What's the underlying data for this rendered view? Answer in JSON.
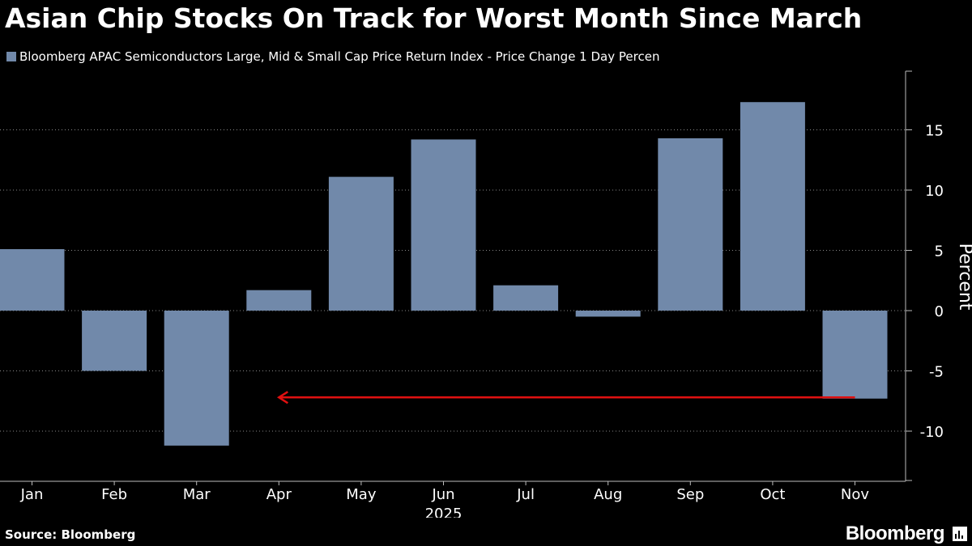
{
  "title": "Asian Chip Stocks On Track for Worst Month Since March",
  "legend_label": "Bloomberg APAC Semiconductors Large, Mid & Small Cap Price Return Index - Price Change 1 Day Percen",
  "source": "Source: Bloomberg",
  "brand": "Bloomberg",
  "colors": {
    "background": "#000000",
    "bar": "#7189aa",
    "text": "#ffffff",
    "gridline": "#888888",
    "axis": "#bbbbbb",
    "arrow": "#e01010"
  },
  "chart_data": {
    "type": "bar",
    "categories": [
      "Jan",
      "Feb",
      "Mar",
      "Apr",
      "May",
      "Jun",
      "Jul",
      "Aug",
      "Sep",
      "Oct",
      "Nov"
    ],
    "series": [
      {
        "name": "Bloomberg APAC Semiconductors Large, Mid & Small Cap Price Return Index - Price Change 1 Day Percen",
        "values": [
          5.1,
          -5.0,
          -11.2,
          1.7,
          11.1,
          14.2,
          2.1,
          -0.5,
          14.3,
          17.3,
          -7.3
        ]
      }
    ],
    "ylabel": "Percent",
    "xlabel_year": "2025",
    "yticks": [
      15,
      10,
      5,
      0,
      -5,
      -10
    ],
    "ytick_labels": [
      "15",
      "10",
      "5",
      "0",
      "-5",
      "-10"
    ],
    "ylim": [
      -14,
      19.5
    ],
    "grid": "horizontal dotted",
    "y_axis_side": "right",
    "annotation": {
      "type": "arrow",
      "color": "#e01010",
      "y_value": -7.2,
      "from_category": "Nov",
      "to_category": "Apr"
    }
  }
}
